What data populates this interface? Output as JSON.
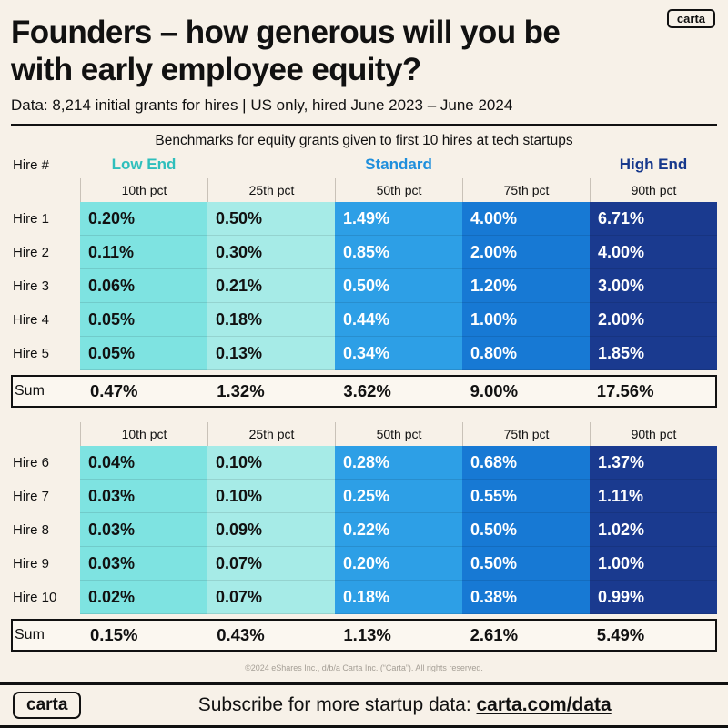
{
  "brand": {
    "logo_text": "carta"
  },
  "header": {
    "title_line1": "Founders – how generous will you be",
    "title_line2": "with early employee equity?",
    "subtitle": "Data: 8,214 initial grants for hires | US only, hired June 2023 – June 2024"
  },
  "colors": {
    "background": "#f7f1e8",
    "low_end_label": "#2fbfbc",
    "standard_label": "#1f8fdc",
    "high_end_label": "#16388c",
    "cell_10th": "#7ee3e1",
    "cell_25th": "#a6ebe7",
    "cell_50th": "#2d9fe6",
    "cell_75th": "#1779d4",
    "cell_90th": "#1a3a8f"
  },
  "chart_data": {
    "type": "table",
    "title": "Benchmarks for equity grants given to first 10 hires at tech startups",
    "row_header": "Hire #",
    "band_headers": [
      "Low End",
      "Standard",
      "High End"
    ],
    "percentile_columns": [
      "10th pct",
      "25th pct",
      "50th pct",
      "75th pct",
      "90th pct"
    ],
    "tables": [
      {
        "rows": [
          {
            "label": "Hire 1",
            "values": [
              "0.20%",
              "0.50%",
              "1.49%",
              "4.00%",
              "6.71%"
            ]
          },
          {
            "label": "Hire 2",
            "values": [
              "0.11%",
              "0.30%",
              "0.85%",
              "2.00%",
              "4.00%"
            ]
          },
          {
            "label": "Hire 3",
            "values": [
              "0.06%",
              "0.21%",
              "0.50%",
              "1.20%",
              "3.00%"
            ]
          },
          {
            "label": "Hire 4",
            "values": [
              "0.05%",
              "0.18%",
              "0.44%",
              "1.00%",
              "2.00%"
            ]
          },
          {
            "label": "Hire 5",
            "values": [
              "0.05%",
              "0.13%",
              "0.34%",
              "0.80%",
              "1.85%"
            ]
          }
        ],
        "sum": {
          "label": "Sum",
          "values": [
            "0.47%",
            "1.32%",
            "3.62%",
            "9.00%",
            "17.56%"
          ]
        }
      },
      {
        "rows": [
          {
            "label": "Hire 6",
            "values": [
              "0.04%",
              "0.10%",
              "0.28%",
              "0.68%",
              "1.37%"
            ]
          },
          {
            "label": "Hire 7",
            "values": [
              "0.03%",
              "0.10%",
              "0.25%",
              "0.55%",
              "1.11%"
            ]
          },
          {
            "label": "Hire 8",
            "values": [
              "0.03%",
              "0.09%",
              "0.22%",
              "0.50%",
              "1.02%"
            ]
          },
          {
            "label": "Hire 9",
            "values": [
              "0.03%",
              "0.07%",
              "0.20%",
              "0.50%",
              "1.00%"
            ]
          },
          {
            "label": "Hire 10",
            "values": [
              "0.02%",
              "0.07%",
              "0.18%",
              "0.38%",
              "0.99%"
            ]
          }
        ],
        "sum": {
          "label": "Sum",
          "values": [
            "0.15%",
            "0.43%",
            "1.13%",
            "2.61%",
            "5.49%"
          ]
        }
      }
    ]
  },
  "footer": {
    "copyright": "©2024 eShares Inc., d/b/a Carta Inc. (“Carta”). All rights reserved."
  },
  "bottom_bar": {
    "logo_text": "carta",
    "subscribe_prefix": "Subscribe for more startup data: ",
    "subscribe_link": "carta.com/data"
  }
}
